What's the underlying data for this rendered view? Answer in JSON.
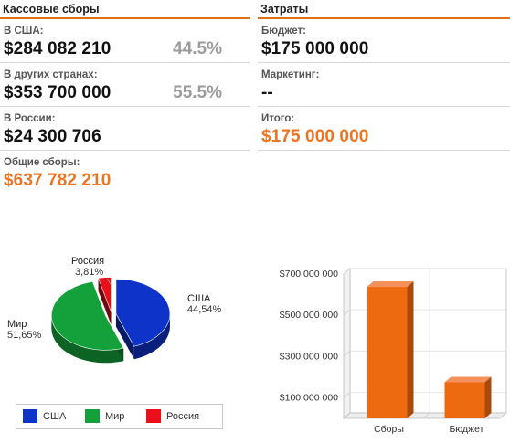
{
  "box_office": {
    "title": "Кассовые сборы",
    "rows": [
      {
        "label": "В США:",
        "value": "$284 082 210",
        "percent": "44.5%"
      },
      {
        "label": "В других странах:",
        "value": "$353 700 000",
        "percent": "55.5%"
      },
      {
        "label": "В России:",
        "value": "$24 300 706"
      },
      {
        "label": "Общие сборы:",
        "value": "$637 782 210"
      }
    ]
  },
  "costs": {
    "title": "Затраты",
    "rows": [
      {
        "label": "Бюджет:",
        "value": "$175 000 000"
      },
      {
        "label": "Маркетинг:",
        "value": "--"
      },
      {
        "label": "Итого:",
        "value": "$175 000 000"
      }
    ]
  },
  "colors": {
    "accent": "#ee7420",
    "usa": "#0d33c8",
    "world": "#14a03a",
    "russia": "#e8101a",
    "bar": "#ee6a10"
  },
  "chart_data": [
    {
      "type": "pie",
      "categories": [
        "США",
        "Мир",
        "Россия"
      ],
      "values": [
        44.54,
        51.65,
        3.81
      ],
      "value_labels": [
        "44,54%",
        "51,65%",
        "3,81%"
      ],
      "legend": [
        "США",
        "Мир",
        "Россия"
      ],
      "legend_position": "bottom"
    },
    {
      "type": "bar",
      "categories": [
        "Сборы",
        "Бюджет"
      ],
      "values": [
        637782210,
        175000000
      ],
      "y_tick_labels": [
        "$100 000 000",
        "$300 000 000",
        "$500 000 000",
        "$700 000 000"
      ],
      "yticks": [
        100000000,
        300000000,
        500000000,
        700000000
      ],
      "ylim": [
        0,
        700000000
      ],
      "grid": true
    }
  ]
}
